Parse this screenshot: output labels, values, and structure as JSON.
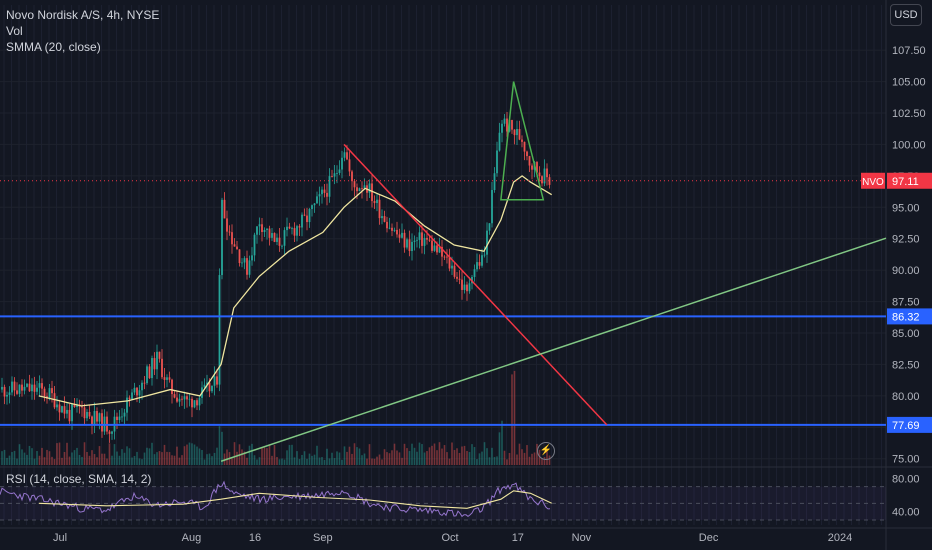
{
  "legend": {
    "symbol": "Novo Nordisk A/S, 4h, NYSE",
    "volume": "Vol",
    "smma": "SMMA (20, close)"
  },
  "rsi_legend": "RSI (14, close, SMA, 14, 2)",
  "currency_button": "USD",
  "lightning_icon": "lightning-icon",
  "colors": {
    "background": "#131722",
    "up": "#26a69a",
    "down": "#ef5350",
    "smma": "#f0e6a0",
    "horizontal_line": "#2962ff",
    "trend_down": "#f23645",
    "trend_up": "#81c784",
    "triangle": "#4caf50",
    "rsi": "#9575cd",
    "price_badge": "#f23645"
  },
  "chart_data": [
    {
      "type": "candlestick",
      "title": "Novo Nordisk A/S, 4h, NYSE",
      "x_tick_labels": [
        "Jul",
        "Aug",
        "16",
        "Sep",
        "Oct",
        "17",
        "Nov",
        "Dec",
        "2024"
      ],
      "y_tick_labels": [
        "107.50",
        "105.00",
        "102.50",
        "100.00",
        "97.50",
        "95.00",
        "92.50",
        "90.00",
        "87.50",
        "85.00",
        "82.50",
        "80.00",
        "77.50",
        "75.00"
      ],
      "ylim": [
        74.5,
        109.5
      ],
      "price_series": {
        "x": [
          "Jun 26",
          "Jun 29",
          "Jul 3",
          "Jul 6",
          "Jul 10",
          "Jul 13",
          "Jul 17",
          "Jul 20",
          "Jul 24",
          "Jul 27",
          "Jul 31",
          "Aug 3",
          "Aug 7",
          "Aug 8",
          "Aug 10",
          "Aug 14",
          "Aug 17",
          "Aug 21",
          "Aug 24",
          "Aug 28",
          "Aug 31",
          "Sep 4",
          "Sep 6",
          "Sep 8",
          "Sep 11",
          "Sep 14",
          "Sep 18",
          "Sep 21",
          "Sep 25",
          "Sep 28",
          "Oct 2",
          "Oct 5",
          "Oct 6",
          "Oct 9",
          "Oct 11",
          "Oct 13",
          "Oct 16",
          "Oct 18",
          "Oct 20",
          "Oct 23",
          "Oct 25"
        ],
        "close": [
          80.5,
          80,
          78.5,
          79,
          78,
          77.5,
          79.5,
          81,
          83,
          80.5,
          79.5,
          80,
          81,
          95.5,
          93,
          90,
          94,
          92,
          93,
          94,
          95.5,
          97.5,
          100,
          96.5,
          97,
          95,
          93,
          92,
          92.5,
          91.5,
          90,
          88,
          90,
          91,
          96,
          102,
          101,
          100.5,
          98.5,
          97.5,
          97.11
        ]
      },
      "smma": {
        "x": [
          "Jun 26",
          "Jul 6",
          "Jul 17",
          "Jul 27",
          "Aug 3",
          "Aug 8",
          "Aug 11",
          "Aug 17",
          "Aug 24",
          "Sep 1",
          "Sep 6",
          "Sep 11",
          "Sep 18",
          "Sep 25",
          "Oct 2",
          "Oct 9",
          "Oct 13",
          "Oct 16",
          "Oct 18",
          "Oct 20",
          "Oct 25"
        ],
        "values": [
          80,
          79.2,
          79.6,
          80.5,
          80,
          82.5,
          87,
          89.5,
          91.5,
          93,
          95,
          96.5,
          95.5,
          93.5,
          92,
          91.5,
          94,
          97,
          97.5,
          97,
          96
        ]
      },
      "horizontal_lines": [
        86.32,
        77.69
      ],
      "trendlines": [
        {
          "from": [
            "Sep 6",
            100
          ],
          "to": [
            "Nov 7",
            77.69
          ]
        },
        {
          "from": [
            "Aug 8",
            74.8
          ],
          "to": [
            "Jan 15",
            92.9
          ]
        }
      ],
      "triangle": [
        [
          "Oct 13",
          95.6
        ],
        [
          "Oct 16",
          105
        ],
        [
          "Oct 23",
          95.6
        ]
      ],
      "last_price": {
        "symbol": "NVO",
        "value": "97.11"
      },
      "price_axis_labels": [
        "86.32",
        "77.69"
      ]
    },
    {
      "type": "line",
      "title": "RSI (14, close, SMA, 14, 2)",
      "y_tick_labels": [
        "80.00",
        "40.00"
      ],
      "ylim": [
        30,
        90
      ],
      "series": [
        {
          "x": [
            "Jun 26",
            "Jul 1",
            "Jul 6",
            "Jul 12",
            "Jul 18",
            "Jul 24",
            "Jul 30",
            "Aug 4",
            "Aug 8",
            "Aug 11",
            "Aug 17",
            "Aug 24",
            "Aug 31",
            "Sep 6",
            "Sep 12",
            "Sep 18",
            "Sep 24",
            "Sep 30",
            "Oct 5",
            "Oct 9",
            "Oct 13",
            "Oct 16",
            "Oct 20",
            "Oct 25"
          ],
          "values": [
            55,
            50,
            44,
            42,
            58,
            48,
            52,
            45,
            75,
            62,
            55,
            58,
            60,
            66,
            50,
            44,
            42,
            40,
            34,
            45,
            68,
            72,
            55,
            45
          ]
        },
        {
          "x": [
            "Jun 26",
            "Jul 12",
            "Jul 30",
            "Aug 8",
            "Aug 17",
            "Aug 31",
            "Sep 12",
            "Sep 24",
            "Oct 5",
            "Oct 13",
            "Oct 16",
            "Oct 20",
            "Oct 25"
          ],
          "values": [
            50,
            47,
            49,
            55,
            62,
            57,
            54,
            47,
            44,
            55,
            65,
            62,
            50
          ]
        }
      ]
    }
  ]
}
